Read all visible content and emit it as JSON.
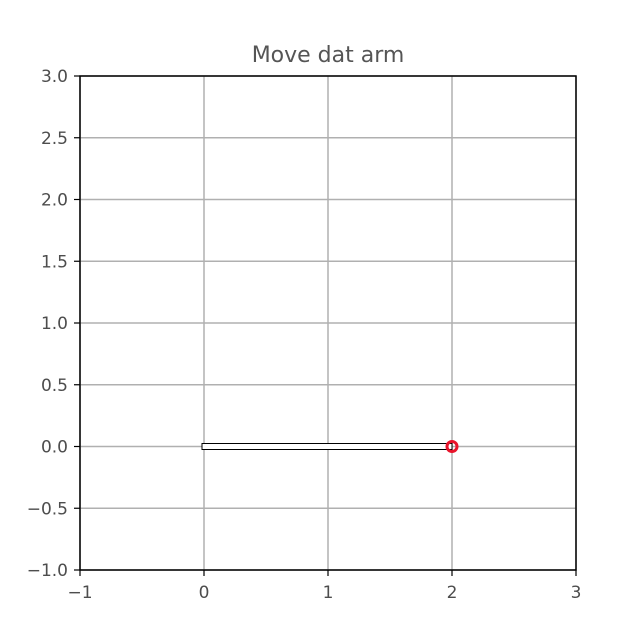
{
  "chart_data": {
    "type": "line",
    "title": "Move dat arm",
    "xlabel": "",
    "ylabel": "",
    "xlim": [
      -1,
      3
    ],
    "ylim": [
      -1,
      3
    ],
    "xticks": [
      -1,
      0,
      1,
      2,
      3
    ],
    "yticks": [
      -1.0,
      -0.5,
      0.0,
      0.5,
      1.0,
      1.5,
      2.0,
      2.5,
      3.0
    ],
    "xtick_labels": [
      "−1",
      "0",
      "1",
      "2",
      "3"
    ],
    "ytick_labels": [
      "−1.0",
      "−0.5",
      "0.0",
      "0.5",
      "1.0",
      "1.5",
      "2.0",
      "2.5",
      "3.0"
    ],
    "grid": true,
    "arm": {
      "x": [
        0,
        2
      ],
      "y": [
        0,
        0
      ],
      "color": "#000000"
    },
    "end_effector": {
      "x": 2,
      "y": 0,
      "color": "#e8142b"
    }
  }
}
